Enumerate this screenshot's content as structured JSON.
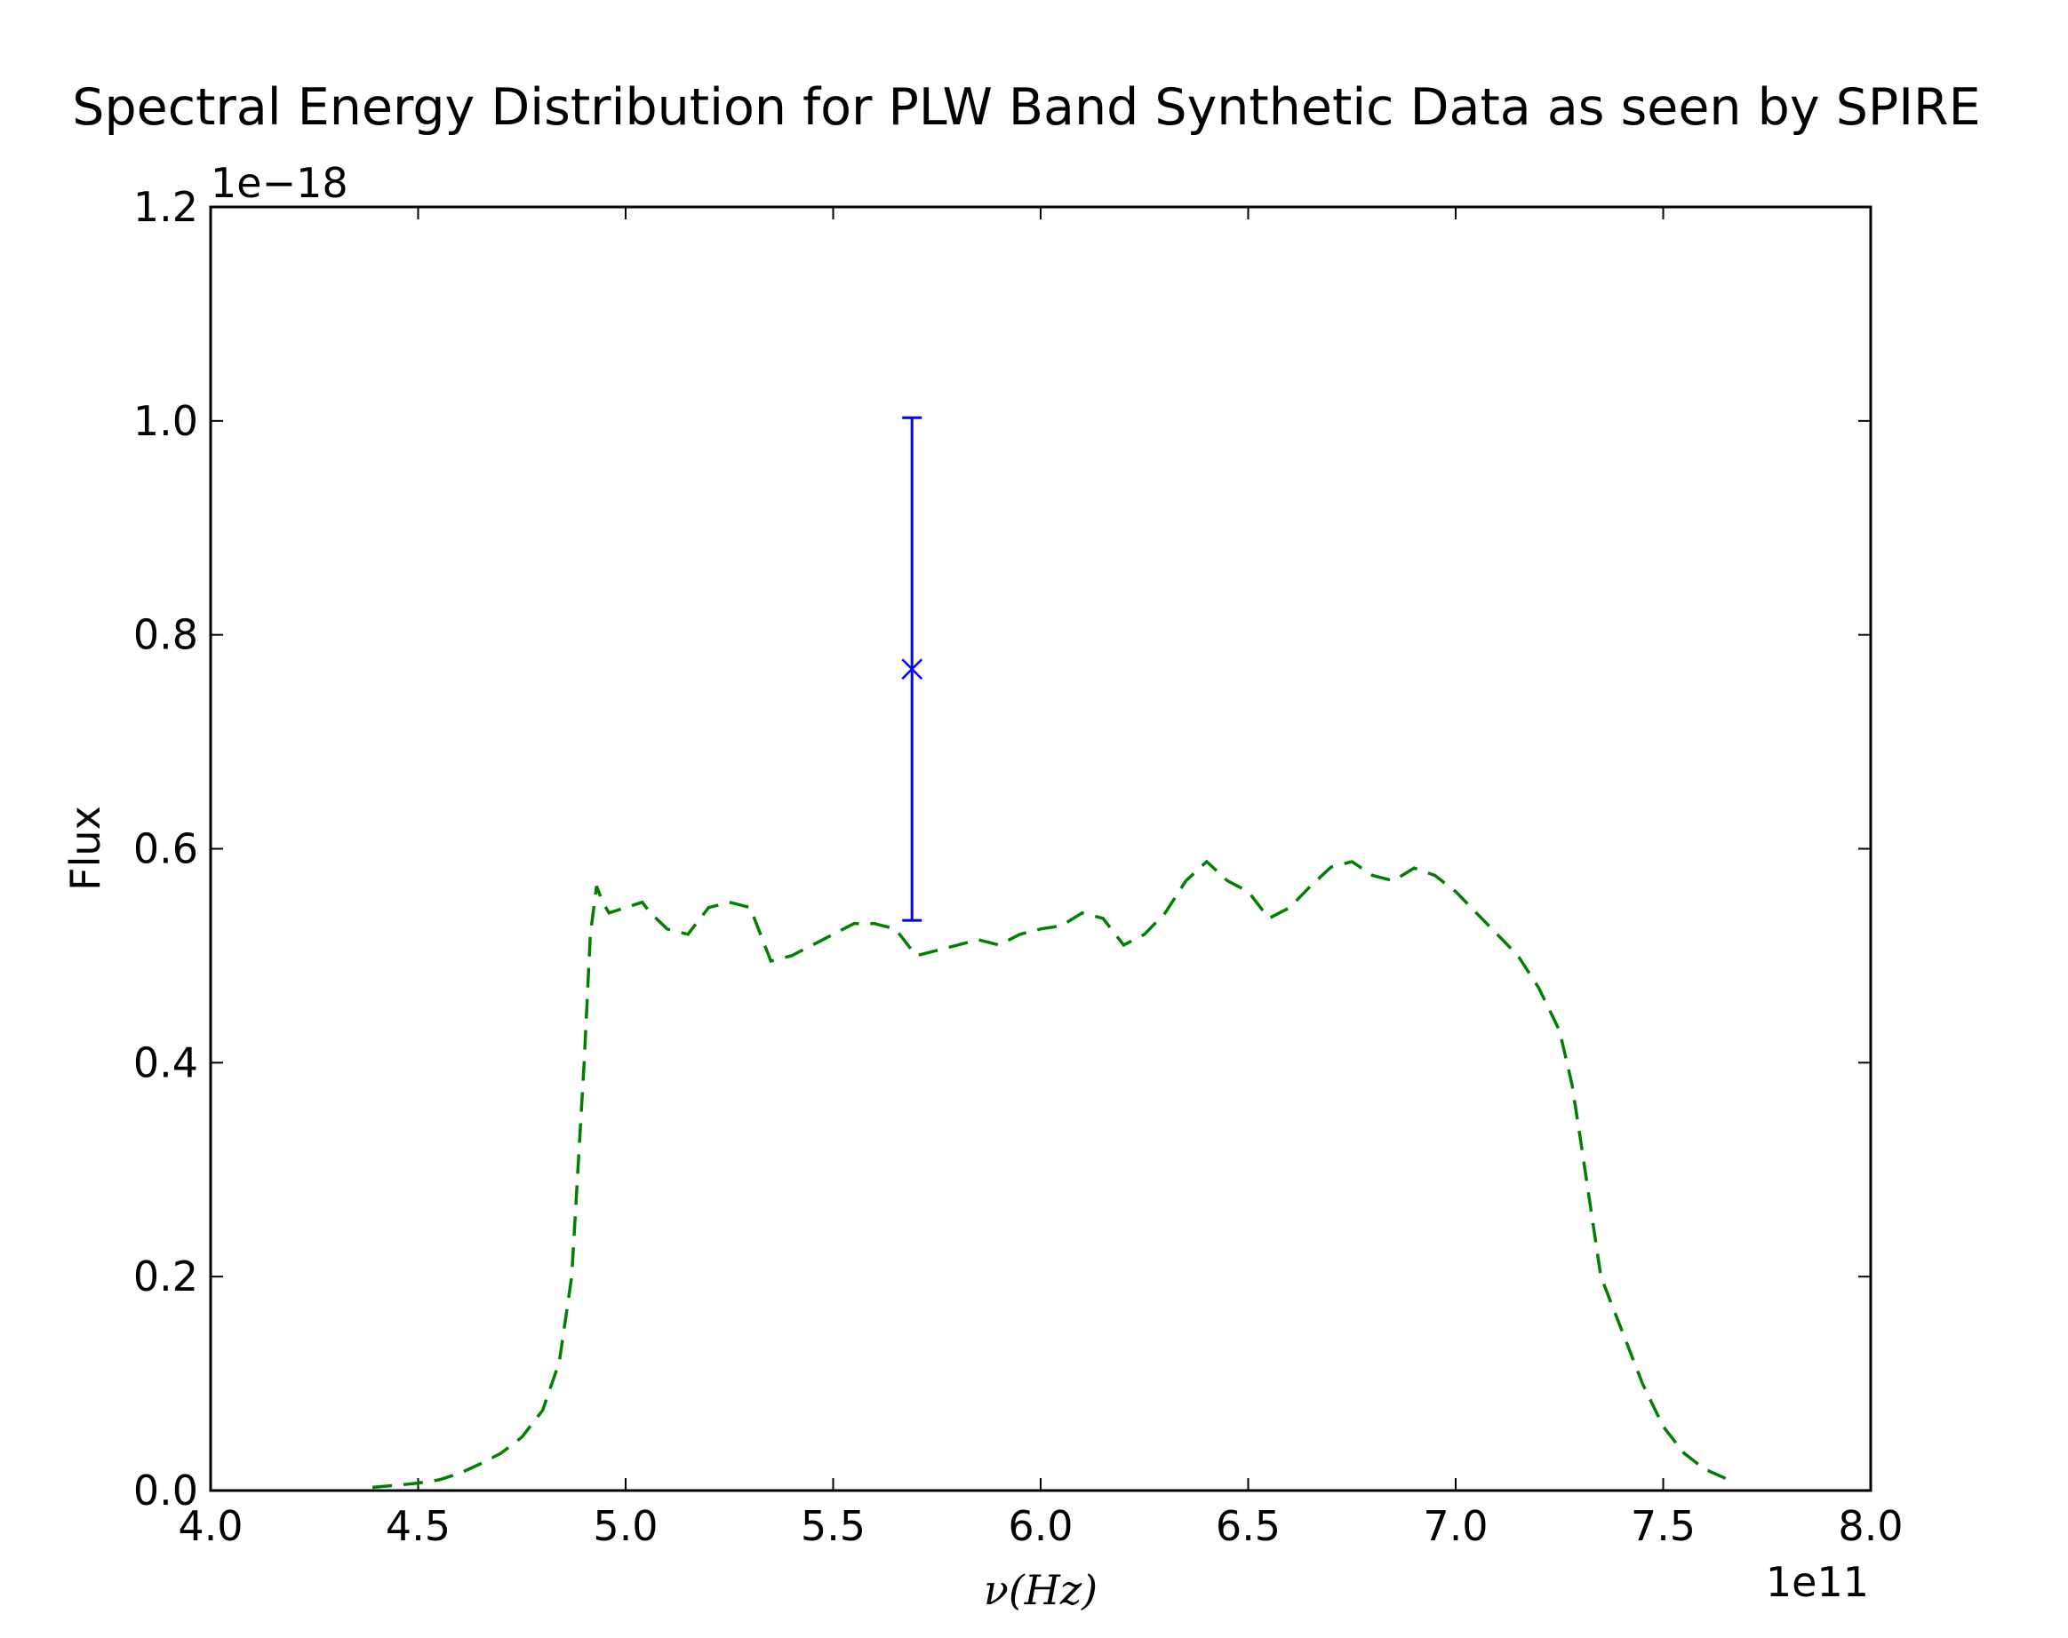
{
  "chart_data": {
    "type": "line",
    "title": "Spectral Energy Distribution for PLW Band Synthetic Data as seen by SPIRE",
    "xlabel": "ν(Hz)",
    "ylabel": "Flux",
    "x_offset_label": "1e11",
    "y_offset_label": "1e−18",
    "xlim": [
      4.0,
      8.0
    ],
    "ylim": [
      0.0,
      1.2
    ],
    "x_ticks": [
      4.0,
      4.5,
      5.0,
      5.5,
      6.0,
      6.5,
      7.0,
      7.5,
      8.0
    ],
    "x_tick_labels": [
      "4.0",
      "4.5",
      "5.0",
      "5.5",
      "6.0",
      "6.5",
      "7.0",
      "7.5",
      "8.0"
    ],
    "y_ticks": [
      0.0,
      0.2,
      0.4,
      0.6,
      0.8,
      1.0,
      1.2
    ],
    "y_tick_labels": [
      "0.0",
      "0.2",
      "0.4",
      "0.6",
      "0.8",
      "1.0",
      "1.2"
    ],
    "grid": false,
    "series": [
      {
        "style": "dashed-line",
        "color": "#008000",
        "x": [
          4.39,
          4.45,
          4.5,
          4.55,
          4.6,
          4.65,
          4.7,
          4.75,
          4.8,
          4.84,
          4.87,
          4.9,
          4.915,
          4.93,
          4.945,
          4.96,
          5.0,
          5.04,
          5.06,
          5.1,
          5.15,
          5.2,
          5.25,
          5.3,
          5.35,
          5.4,
          5.45,
          5.5,
          5.55,
          5.6,
          5.65,
          5.7,
          5.75,
          5.8,
          5.85,
          5.9,
          5.95,
          6.0,
          6.05,
          6.1,
          6.15,
          6.2,
          6.25,
          6.3,
          6.35,
          6.4,
          6.45,
          6.5,
          6.55,
          6.6,
          6.65,
          6.7,
          6.75,
          6.8,
          6.85,
          6.9,
          6.95,
          7.0,
          7.05,
          7.1,
          7.15,
          7.2,
          7.25,
          7.28,
          7.3,
          7.35,
          7.4,
          7.45,
          7.5,
          7.55,
          7.6,
          7.67
        ],
        "y": [
          0.003,
          0.005,
          0.007,
          0.01,
          0.016,
          0.025,
          0.035,
          0.05,
          0.075,
          0.12,
          0.2,
          0.4,
          0.52,
          0.565,
          0.55,
          0.54,
          0.545,
          0.55,
          0.54,
          0.525,
          0.52,
          0.545,
          0.55,
          0.545,
          0.495,
          0.5,
          0.51,
          0.52,
          0.53,
          0.53,
          0.525,
          0.5,
          0.505,
          0.51,
          0.515,
          0.51,
          0.52,
          0.525,
          0.528,
          0.54,
          0.535,
          0.51,
          0.52,
          0.54,
          0.57,
          0.588,
          0.57,
          0.56,
          0.535,
          0.545,
          0.565,
          0.583,
          0.588,
          0.575,
          0.57,
          0.582,
          0.575,
          0.56,
          0.54,
          0.52,
          0.5,
          0.47,
          0.43,
          0.38,
          0.33,
          0.2,
          0.15,
          0.1,
          0.06,
          0.035,
          0.02,
          0.008
        ]
      },
      {
        "style": "errorbar",
        "color": "#0000ff",
        "x": [
          5.69
        ],
        "y": [
          0.768
        ],
        "yerr_low": [
          0.533
        ],
        "yerr_high": [
          1.003
        ],
        "marker": "x"
      }
    ]
  }
}
